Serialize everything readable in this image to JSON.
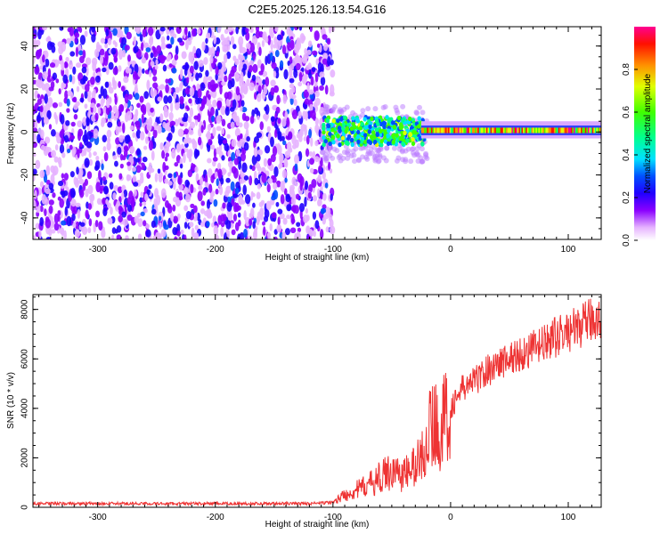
{
  "title": "C2E5.2025.126.13.54.G16",
  "chart_data": [
    {
      "type": "heatmap",
      "xlabel": "Height of straight line (km)",
      "ylabel": "Frequency (Hz)",
      "xlim": [
        -355,
        128
      ],
      "ylim": [
        -50,
        49
      ],
      "x_ticks": [
        -300,
        -200,
        -100,
        0,
        100
      ],
      "y_ticks": [
        -40,
        -20,
        0,
        20,
        40
      ],
      "grid": false,
      "colorbar": {
        "label": "Normalized spectral amplitude",
        "range": [
          0,
          1
        ],
        "ticks": [
          0.0,
          0.2,
          0.4,
          0.6,
          0.8
        ],
        "colormap": [
          "#ffffff",
          "#e8b0ff",
          "#8800ff",
          "#0000ff",
          "#00ffff",
          "#00ff00",
          "#ffff00",
          "#ff8000",
          "#ff0000",
          "#ff00a0"
        ]
      },
      "regions": [
        {
          "x_range": [
            -355,
            -100
          ],
          "freq_range": [
            -50,
            49
          ],
          "amplitude": "low (0.05-0.25)",
          "pattern": "noise"
        },
        {
          "x_range": [
            -110,
            -20
          ],
          "freq_range": [
            -12,
            10
          ],
          "amplitude": "mid (0.3-0.6)",
          "pattern": "scattered signal"
        },
        {
          "x_range": [
            -20,
            128
          ],
          "freq_range": [
            -2,
            3
          ],
          "amplitude": "high (0.6-1.0)",
          "pattern": "narrow band near 0 Hz"
        }
      ]
    },
    {
      "type": "line",
      "xlabel": "Height of straight line (km)",
      "ylabel": "SNR (10 * v/v)",
      "xlim": [
        -355,
        128
      ],
      "ylim": [
        0,
        8600
      ],
      "x_ticks": [
        -300,
        -200,
        -100,
        0,
        100
      ],
      "y_ticks": [
        0,
        2000,
        4000,
        6000,
        8000
      ],
      "grid": false,
      "series": [
        {
          "color": "#ee3333",
          "x": [
            -355,
            -300,
            -200,
            -120,
            -100,
            -90,
            -80,
            -70,
            -60,
            -50,
            -40,
            -30,
            -25,
            -20,
            -15,
            -10,
            0,
            10,
            20,
            30,
            40,
            50,
            60,
            70,
            80,
            90,
            100,
            110,
            120,
            128
          ],
          "y": [
            150,
            150,
            150,
            150,
            200,
            500,
            700,
            900,
            1200,
            1500,
            1300,
            1700,
            2000,
            2800,
            3500,
            3100,
            4000,
            4800,
            5100,
            5500,
            5800,
            6000,
            6200,
            6400,
            6600,
            6900,
            7100,
            7300,
            7600,
            7700
          ]
        }
      ]
    }
  ]
}
